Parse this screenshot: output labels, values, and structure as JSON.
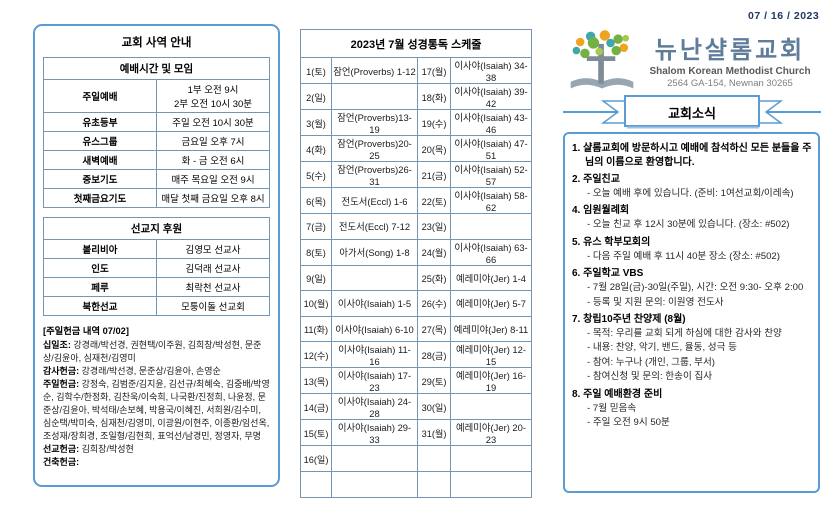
{
  "header": {
    "date": "07 / 16 / 2023"
  },
  "left_panel": {
    "title": "교회 사역 안내",
    "worship_table": {
      "header": "예배시간 및 모임",
      "rows": [
        {
          "label": "주일예배",
          "value": "1부 오전 9시\n2부 오전 10시 30분"
        },
        {
          "label": "유초등부",
          "value": "주일 오전 10시 30분"
        },
        {
          "label": "유스그룹",
          "value": "금요일 오후 7시"
        },
        {
          "label": "새벽예배",
          "value": "화 - 금 오전 6시"
        },
        {
          "label": "중보기도",
          "value": "매주 목요일 오전 9시"
        },
        {
          "label": "첫째금요기도",
          "value": "매달 첫째 금요일 오후 8시"
        }
      ]
    },
    "mission_table": {
      "header": "선교지 후원",
      "rows": [
        {
          "label": "볼리비아",
          "value": "김영모 선교사"
        },
        {
          "label": "인도",
          "value": "김덕래 선교사"
        },
        {
          "label": "페루",
          "value": "최락천 선교사"
        },
        {
          "label": "북한선교",
          "value": "모퉁이돌 선교회"
        }
      ]
    },
    "offering": {
      "title": "[주일헌금 내역 07/02]",
      "entries": [
        {
          "label": "십일조:",
          "value": "강경래/박선경, 권현택/이주원, 김희창/박성현, 문준상/김윤아, 심재천/김영미"
        },
        {
          "label": "감사헌금:",
          "value": "강경래/박선경, 문준상/김윤아, 손영순"
        },
        {
          "label": "주일헌금:",
          "value": "강정숙, 김범준/김지윤, 김선규/최혜숙, 김중배/박영순, 김학수/한정화, 김찬욱/이숙희, 나국환/진정희, 나윤정, 문준상/김윤아, 박석태/손보혜, 박용국/이혜진, 서희원/김수미, 심순택/박미숙, 심재천/김영미, 이광원/이현주, 이종환/임선옥, 조성재/장희경, 조일형/김현희, 표억선/남경민, 정영자, 무명"
        },
        {
          "label": "선교헌금:",
          "value": "김희장/박성현"
        },
        {
          "label": "건축헌금:",
          "value": ""
        }
      ]
    }
  },
  "schedule": {
    "title": "2023년 7월 성경통독 스케줄",
    "rows": [
      [
        "1(토)",
        "잠언(Proverbs) 1-12",
        "17(월)",
        "이사야(Isaiah) 34-38"
      ],
      [
        "2(일)",
        "",
        "18(화)",
        "이사야(Isaiah) 39-42"
      ],
      [
        "3(월)",
        "잠언(Proverbs)13-19",
        "19(수)",
        "이사야(Isaiah) 43-46"
      ],
      [
        "4(화)",
        "잠언(Proverbs)20-25",
        "20(목)",
        "이사야(Isaiah) 47-51"
      ],
      [
        "5(수)",
        "잠언(Proverbs)26-31",
        "21(금)",
        "이사야(Isaiah) 52-57"
      ],
      [
        "6(목)",
        "전도서(Eccl) 1-6",
        "22(토)",
        "이사야(Isaiah) 58-62"
      ],
      [
        "7(금)",
        "전도서(Eccl) 7-12",
        "23(일)",
        ""
      ],
      [
        "8(토)",
        "아가서(Song) 1-8",
        "24(월)",
        "이사야(Isaiah) 63-66"
      ],
      [
        "9(일)",
        "",
        "25(화)",
        "예레미야(Jer) 1-4"
      ],
      [
        "10(월)",
        "이사야(Isaiah) 1-5",
        "26(수)",
        "예레미야(Jer) 5-7"
      ],
      [
        "11(화)",
        "이사야(Isaiah) 6-10",
        "27(목)",
        "예레미야(Jer) 8-11"
      ],
      [
        "12(수)",
        "이사야(Isaiah) 11-16",
        "28(금)",
        "예레미야(Jer) 12-15"
      ],
      [
        "13(목)",
        "이사야(Isaiah) 17-23",
        "29(토)",
        "예레미야(Jer) 16-19"
      ],
      [
        "14(금)",
        "이사야(Isaiah) 24-28",
        "30(일)",
        ""
      ],
      [
        "15(토)",
        "이사야(Isaiah) 29-33",
        "31(월)",
        "예레미야(Jer) 20-23"
      ],
      [
        "16(일)",
        "",
        "",
        ""
      ],
      [
        "",
        "",
        "",
        ""
      ]
    ]
  },
  "church": {
    "name": "뉴난샬롬교회",
    "subtitle": "Shalom Korean Methodist Church",
    "address": "2564 GA-154, Newnan 30265"
  },
  "news": {
    "banner": "교회소식",
    "items": [
      {
        "number": "1.",
        "title": "샬롬교회에 방문하시고 예배에 참석하신 모든 분들을 주님의 이름으로 환영합니다.",
        "subs": []
      },
      {
        "number": "2.",
        "title": "주일친교",
        "subs": [
          "- 오늘 예배 후에 있습니다. (준비: 1여선교회/이레속)"
        ]
      },
      {
        "number": "4.",
        "title": "임원월례회",
        "subs": [
          "- 오늘 친교 후 12시 30분에 있습니다. (장소: #502)"
        ]
      },
      {
        "number": "5.",
        "title": "유스 학부모회의",
        "subs": [
          "- 다음 주일 예배 후 11시 40분 장소 (장소: #502)"
        ]
      },
      {
        "number": "6.",
        "title": "주일학교 VBS",
        "subs": [
          "- 7월 28일(금)-30일(주일), 시간: 오전 9:30- 오후 2:00",
          "- 등록 및 지원 문의: 이원영 전도사"
        ]
      },
      {
        "number": "7.",
        "title": "창립10주년 찬양제 (8월)",
        "subs": [
          "- 목적: 우리를 교회 되게 하심에 대한 감사와 찬양",
          "- 내용: 찬양, 악기, 밴드, 율동, 성극 등",
          "- 참여: 누구나 (개인, 그룹, 부서)",
          "- 참여신청 및 문의: 한송이 집사"
        ]
      },
      {
        "number": "8.",
        "title": "주일 예배환경 준비",
        "subs": [
          "- 7월 믿음속",
          "- 주일 오전 9시 50분"
        ]
      }
    ]
  },
  "colors": {
    "accent_border": "#5b9bd5",
    "table_border": "#7396b5",
    "church_name": "#5f7d9a",
    "date_text": "#1f3864",
    "logo_green": "#76b043",
    "logo_amber": "#f0a41e",
    "logo_teal": "#3fa8a8",
    "logo_gray": "#7d8c96"
  }
}
